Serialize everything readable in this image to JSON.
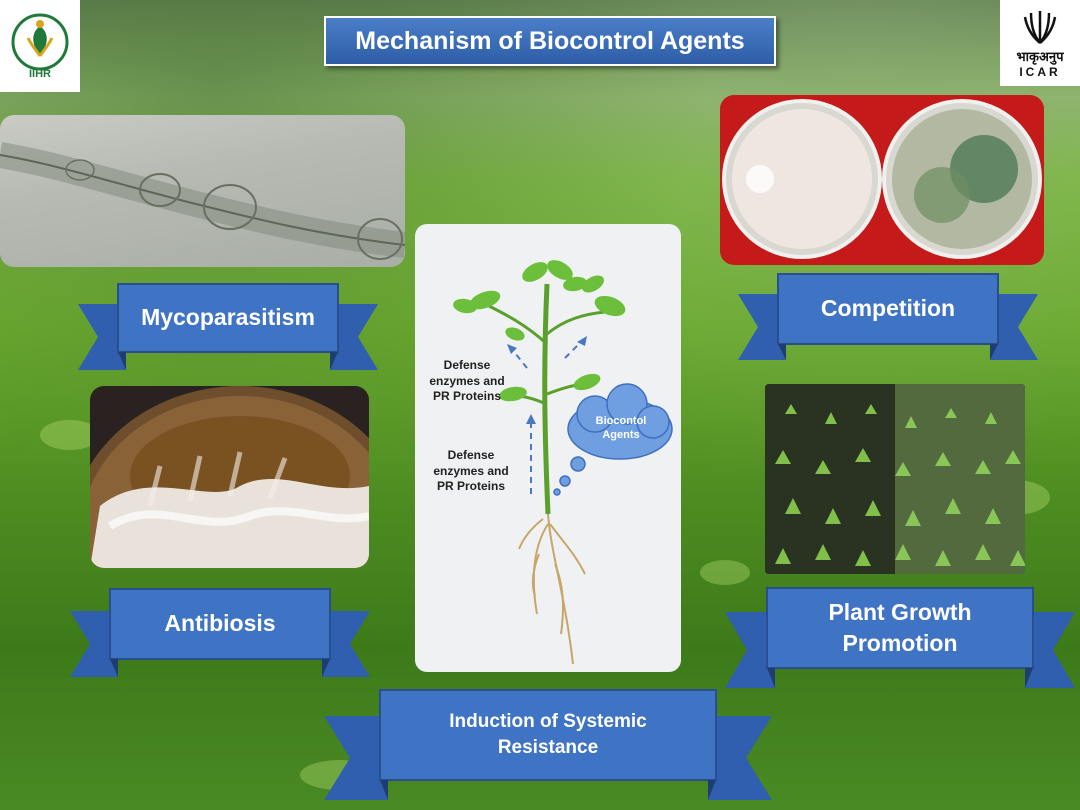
{
  "title": "Mechanism of Biocontrol Agents",
  "logos": {
    "left_text": "IIHR",
    "right_text_hindi": "भाकृअनुप",
    "right_text": "ICAR"
  },
  "mechanisms": {
    "mycoparasitism": "Mycoparasitism",
    "competition": "Competition",
    "antibiosis": "Antibiosis",
    "plant_growth_line1": "Plant Growth",
    "plant_growth_line2": "Promotion",
    "isr_line1": "Induction of Systemic",
    "isr_line2": "Resistance"
  },
  "diagram": {
    "upper_label_line1": "Defense",
    "upper_label_line2": "enzymes and",
    "upper_label_line3": "PR Proteins",
    "lower_label_line1": "Defense",
    "lower_label_line2": "enzymes and",
    "lower_label_line3": "PR Proteins",
    "cloud_line1": "Biocontol",
    "cloud_line2": "Agents"
  },
  "colors": {
    "ribbon": "#3f73c4",
    "ribbon_dark": "#2a4f8f",
    "cloud": "#6f9fe0"
  }
}
